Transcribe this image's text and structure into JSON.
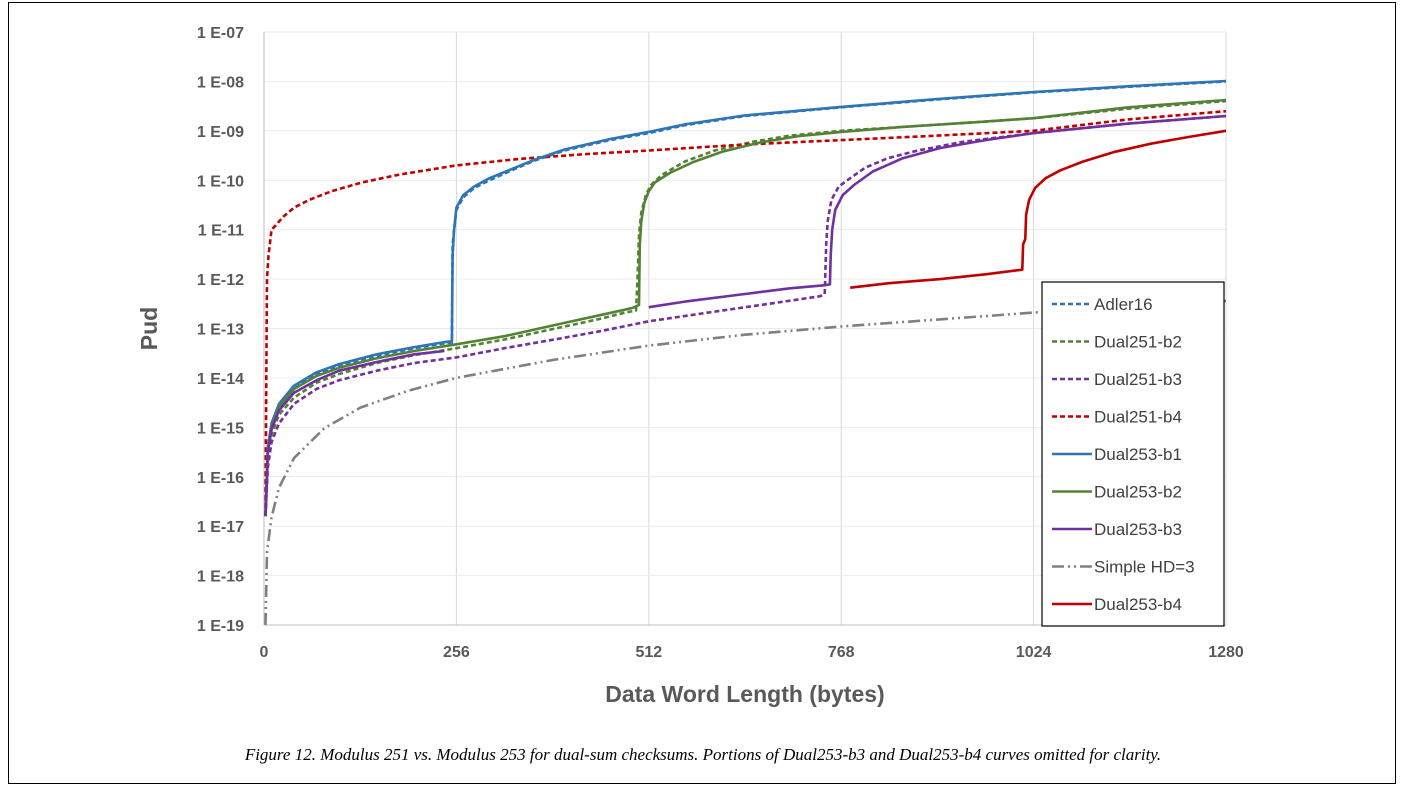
{
  "caption": "Figure 12. Modulus 251 vs. Modulus 253 for dual-sum checksums. Portions of Dual253-b3 and Dual253-b4 curves omitted for clarity.",
  "chart_data": {
    "type": "line",
    "xlabel": "Data Word Length (bytes)",
    "ylabel": "Pud",
    "xlim": [
      0,
      1280
    ],
    "x_ticks": [
      0,
      256,
      512,
      768,
      1024,
      1280
    ],
    "x_tick_labels": [
      "0",
      "256",
      "512",
      "768",
      "1024",
      "1280"
    ],
    "y_scale": "log",
    "ylim": [
      1e-19,
      1e-07
    ],
    "y_tick_values": [
      1e-19,
      1e-18,
      1e-17,
      1e-16,
      1e-15,
      1e-14,
      1e-13,
      1e-12,
      1e-11,
      1e-10,
      1e-09,
      1e-08,
      1e-07
    ],
    "y_tick_labels": [
      "1 E-19",
      "1 E-18",
      "1 E-17",
      "1 E-16",
      "1 E-15",
      "1 E-14",
      "1 E-13",
      "1 E-12",
      "1 E-11",
      "1 E-10",
      "1 E-09",
      "1 E-08",
      "1 E-07"
    ],
    "grid": "vertical",
    "legend_position": "right",
    "series": [
      {
        "name": "Adler16",
        "color": "#2e75b6",
        "dash": "dashed",
        "points": [
          [
            2,
            1.6e-17
          ],
          [
            5,
            3e-16
          ],
          [
            10,
            1e-15
          ],
          [
            20,
            2.5e-15
          ],
          [
            40,
            6e-15
          ],
          [
            70,
            1.2e-14
          ],
          [
            100,
            1.8e-14
          ],
          [
            150,
            2.8e-14
          ],
          [
            200,
            4e-14
          ],
          [
            240,
            5e-14
          ],
          [
            250,
            5.2e-14
          ],
          [
            251,
            5e-12
          ],
          [
            253,
            1e-11
          ],
          [
            256,
            2.5e-11
          ],
          [
            265,
            4.5e-11
          ],
          [
            280,
            7e-11
          ],
          [
            300,
            1e-10
          ],
          [
            330,
            1.6e-10
          ],
          [
            360,
            2.5e-10
          ],
          [
            400,
            4e-10
          ],
          [
            460,
            6.5e-10
          ],
          [
            512,
            9e-10
          ],
          [
            560,
            1.3e-09
          ],
          [
            640,
            2e-09
          ],
          [
            768,
            3e-09
          ],
          [
            896,
            4.3e-09
          ],
          [
            1024,
            6e-09
          ],
          [
            1152,
            7.8e-09
          ],
          [
            1280,
            1e-08
          ]
        ]
      },
      {
        "name": "Dual251-b2",
        "color": "#548235",
        "dash": "dashed",
        "points": [
          [
            2,
            1.6e-17
          ],
          [
            5,
            2e-16
          ],
          [
            10,
            7e-16
          ],
          [
            20,
            1.8e-15
          ],
          [
            40,
            4e-15
          ],
          [
            70,
            8e-15
          ],
          [
            100,
            1.2e-14
          ],
          [
            150,
            2e-14
          ],
          [
            200,
            2.9e-14
          ],
          [
            256,
            4e-14
          ],
          [
            320,
            6e-14
          ],
          [
            400,
            1.1e-13
          ],
          [
            450,
            1.6e-13
          ],
          [
            480,
            2.1e-13
          ],
          [
            495,
            2.3e-13
          ],
          [
            497,
            1e-12
          ],
          [
            499,
            8e-12
          ],
          [
            502,
            2.2e-11
          ],
          [
            508,
            5e-11
          ],
          [
            515,
            8e-11
          ],
          [
            530,
            1.3e-10
          ],
          [
            560,
            2.4e-10
          ],
          [
            600,
            4e-10
          ],
          [
            650,
            6e-10
          ],
          [
            700,
            8e-10
          ],
          [
            768,
            1e-09
          ],
          [
            850,
            1.2e-09
          ],
          [
            950,
            1.5e-09
          ],
          [
            1024,
            1.8e-09
          ],
          [
            1150,
            2.8e-09
          ],
          [
            1280,
            4e-09
          ]
        ]
      },
      {
        "name": "Dual251-b3",
        "color": "#7030a0",
        "dash": "dashed",
        "points": [
          [
            2,
            1.6e-17
          ],
          [
            5,
            1.5e-16
          ],
          [
            10,
            5e-16
          ],
          [
            20,
            1.2e-15
          ],
          [
            40,
            3e-15
          ],
          [
            70,
            6e-15
          ],
          [
            100,
            9e-15
          ],
          [
            150,
            1.4e-14
          ],
          [
            200,
            2e-14
          ],
          [
            256,
            2.6e-14
          ],
          [
            320,
            4e-14
          ],
          [
            400,
            6.5e-14
          ],
          [
            450,
            9e-14
          ],
          [
            512,
            1.4e-13
          ],
          [
            600,
            2.2e-13
          ],
          [
            680,
            3.3e-13
          ],
          [
            740,
            4.5e-13
          ],
          [
            746,
            5e-13
          ],
          [
            748,
            5e-12
          ],
          [
            750,
            1.5e-11
          ],
          [
            755,
            4e-11
          ],
          [
            765,
            7.5e-11
          ],
          [
            780,
            1.1e-10
          ],
          [
            800,
            1.8e-10
          ],
          [
            830,
            2.8e-10
          ],
          [
            870,
            4e-10
          ],
          [
            930,
            6e-10
          ],
          [
            1024,
            9e-10
          ],
          [
            1150,
            1.4e-09
          ],
          [
            1280,
            2e-09
          ]
        ]
      },
      {
        "name": "Dual251-b4",
        "color": "#c00000",
        "dash": "dashed",
        "points": [
          [
            2,
            1.6e-17
          ],
          [
            3,
            1e-14
          ],
          [
            4,
            1e-12
          ],
          [
            6,
            3e-12
          ],
          [
            10,
            1e-11
          ],
          [
            15,
            1.2e-11
          ],
          [
            25,
            1.8e-11
          ],
          [
            40,
            2.8e-11
          ],
          [
            60,
            4e-11
          ],
          [
            90,
            6e-11
          ],
          [
            130,
            9e-11
          ],
          [
            180,
            1.3e-10
          ],
          [
            256,
            2e-10
          ],
          [
            340,
            2.7e-10
          ],
          [
            430,
            3.4e-10
          ],
          [
            512,
            4e-10
          ],
          [
            640,
            5.3e-10
          ],
          [
            768,
            6.5e-10
          ],
          [
            896,
            8e-10
          ],
          [
            1024,
            1e-09
          ],
          [
            1150,
            1.7e-09
          ],
          [
            1280,
            2.5e-09
          ]
        ]
      },
      {
        "name": "Dual253-b1",
        "color": "#2e75b6",
        "dash": "solid",
        "points": [
          [
            2,
            1.6e-17
          ],
          [
            5,
            4e-16
          ],
          [
            10,
            1.2e-15
          ],
          [
            20,
            3e-15
          ],
          [
            40,
            7e-15
          ],
          [
            70,
            1.3e-14
          ],
          [
            100,
            1.9e-14
          ],
          [
            150,
            3e-14
          ],
          [
            200,
            4.2e-14
          ],
          [
            240,
            5.3e-14
          ],
          [
            250,
            5.5e-14
          ],
          [
            251,
            3e-12
          ],
          [
            253,
            1e-11
          ],
          [
            256,
            2.8e-11
          ],
          [
            265,
            5e-11
          ],
          [
            280,
            7.5e-11
          ],
          [
            300,
            1.1e-10
          ],
          [
            330,
            1.7e-10
          ],
          [
            360,
            2.6e-10
          ],
          [
            400,
            4.2e-10
          ],
          [
            460,
            6.8e-10
          ],
          [
            512,
            9.5e-10
          ],
          [
            560,
            1.35e-09
          ],
          [
            640,
            2.05e-09
          ],
          [
            768,
            3.05e-09
          ],
          [
            896,
            4.4e-09
          ],
          [
            1024,
            6.1e-09
          ],
          [
            1152,
            8e-09
          ],
          [
            1280,
            1.02e-08
          ]
        ]
      },
      {
        "name": "Dual253-b2",
        "color": "#548235",
        "dash": "solid",
        "points": [
          [
            2,
            1.6e-17
          ],
          [
            5,
            3.5e-16
          ],
          [
            10,
            1e-15
          ],
          [
            20,
            2.6e-15
          ],
          [
            40,
            6e-15
          ],
          [
            70,
            1.1e-14
          ],
          [
            100,
            1.6e-14
          ],
          [
            150,
            2.5e-14
          ],
          [
            200,
            3.5e-14
          ],
          [
            256,
            4.8e-14
          ],
          [
            320,
            7e-14
          ],
          [
            400,
            1.3e-13
          ],
          [
            450,
            1.9e-13
          ],
          [
            490,
            2.6e-13
          ],
          [
            499,
            3e-13
          ],
          [
            500,
            5e-12
          ],
          [
            502,
            1.5e-11
          ],
          [
            506,
            3.5e-11
          ],
          [
            512,
            6e-11
          ],
          [
            520,
            9e-11
          ],
          [
            540,
            1.4e-10
          ],
          [
            570,
            2.3e-10
          ],
          [
            610,
            3.8e-10
          ],
          [
            660,
            5.8e-10
          ],
          [
            710,
            7.8e-10
          ],
          [
            768,
            9.5e-10
          ],
          [
            850,
            1.2e-09
          ],
          [
            950,
            1.5e-09
          ],
          [
            1024,
            1.8e-09
          ],
          [
            1150,
            3e-09
          ],
          [
            1280,
            4.2e-09
          ]
        ]
      },
      {
        "name": "Dual253-b3",
        "color": "#7030a0",
        "dash": "solid",
        "points": [
          [
            2,
            1.6e-17
          ],
          [
            5,
            3e-16
          ],
          [
            10,
            9e-16
          ],
          [
            20,
            2.2e-15
          ],
          [
            40,
            5e-15
          ],
          [
            70,
            9e-15
          ],
          [
            100,
            1.4e-14
          ],
          [
            150,
            2.1e-14
          ],
          [
            200,
            3e-14
          ],
          [
            240,
            3.5e-14
          ],
          [
            null,
            null
          ],
          [
            512,
            2.7e-13
          ],
          [
            560,
            3.5e-13
          ],
          [
            640,
            5e-13
          ],
          [
            700,
            6.5e-13
          ],
          [
            745,
            7.5e-13
          ],
          [
            753,
            7.8e-13
          ],
          [
            754,
            3e-12
          ],
          [
            756,
            1e-11
          ],
          [
            760,
            2.5e-11
          ],
          [
            770,
            5e-11
          ],
          [
            785,
            8e-11
          ],
          [
            810,
            1.5e-10
          ],
          [
            850,
            2.8e-10
          ],
          [
            900,
            4.5e-10
          ],
          [
            960,
            6.5e-10
          ],
          [
            1024,
            9e-10
          ],
          [
            1150,
            1.4e-09
          ],
          [
            1280,
            2e-09
          ]
        ]
      },
      {
        "name": "Simple HD=3",
        "color": "#808080",
        "dash": "dashdotdot",
        "points": [
          [
            2,
            1e-19
          ],
          [
            4,
            3e-18
          ],
          [
            10,
            1.5e-17
          ],
          [
            20,
            6e-17
          ],
          [
            40,
            2.4e-16
          ],
          [
            80,
            9.5e-16
          ],
          [
            128,
            2.5e-15
          ],
          [
            192,
            5.5e-15
          ],
          [
            256,
            1e-14
          ],
          [
            384,
            2.3e-14
          ],
          [
            512,
            4.5e-14
          ],
          [
            640,
            7.5e-14
          ],
          [
            768,
            1.1e-13
          ],
          [
            1024,
            2.1e-13
          ],
          [
            1152,
            2.8e-13
          ],
          [
            1280,
            3.6e-13
          ]
        ]
      },
      {
        "name": "Dual253-b4",
        "color": "#c00000",
        "dash": "solid",
        "points": [
          [
            780,
            6.7e-13
          ],
          [
            830,
            8.2e-13
          ],
          [
            900,
            1e-12
          ],
          [
            960,
            1.25e-12
          ],
          [
            1009,
            1.55e-12
          ],
          [
            1010,
            5e-12
          ],
          [
            1013,
            6.5e-12
          ],
          [
            1014,
            2e-11
          ],
          [
            1018,
            4e-11
          ],
          [
            1026,
            7e-11
          ],
          [
            1040,
            1.1e-10
          ],
          [
            1060,
            1.6e-10
          ],
          [
            1090,
            2.4e-10
          ],
          [
            1130,
            3.7e-10
          ],
          [
            1180,
            5.5e-10
          ],
          [
            1230,
            7.5e-10
          ],
          [
            1280,
            1e-09
          ]
        ]
      }
    ]
  }
}
